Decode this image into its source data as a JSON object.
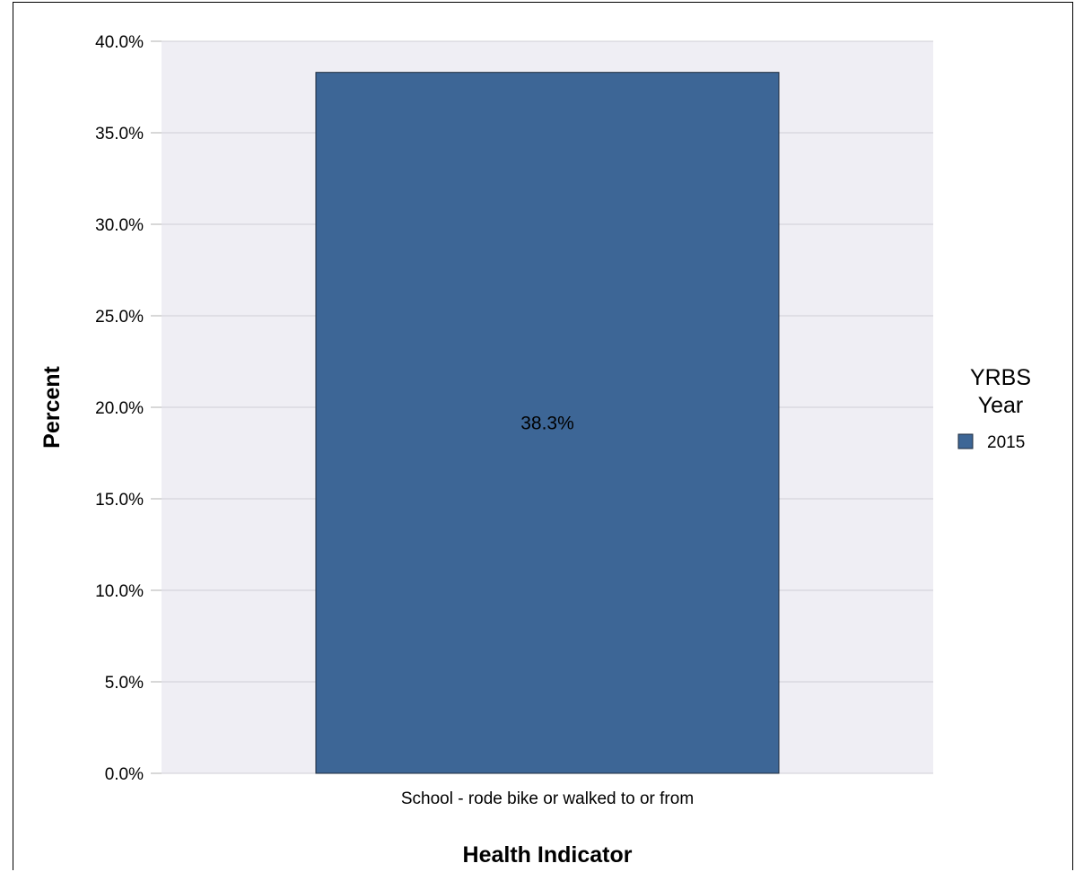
{
  "chart_data": {
    "type": "bar",
    "categories": [
      "School - rode bike or walked to or from"
    ],
    "series": [
      {
        "name": "2015",
        "values": [
          38.3
        ],
        "color": "#3d6696"
      }
    ],
    "data_labels": [
      "38.3%"
    ],
    "xlabel": "Health Indicator",
    "ylabel": "Percent",
    "ylim": [
      0,
      40
    ],
    "yticks": [
      0,
      5,
      10,
      15,
      20,
      25,
      30,
      35,
      40
    ],
    "ytick_labels": [
      "0.0%",
      "5.0%",
      "10.0%",
      "15.0%",
      "20.0%",
      "25.0%",
      "30.0%",
      "35.0%",
      "40.0%"
    ],
    "grid": true,
    "plot_background": "#efeef4",
    "legend": {
      "title_lines": [
        "YRBS",
        "Year"
      ],
      "placement": "right"
    }
  }
}
